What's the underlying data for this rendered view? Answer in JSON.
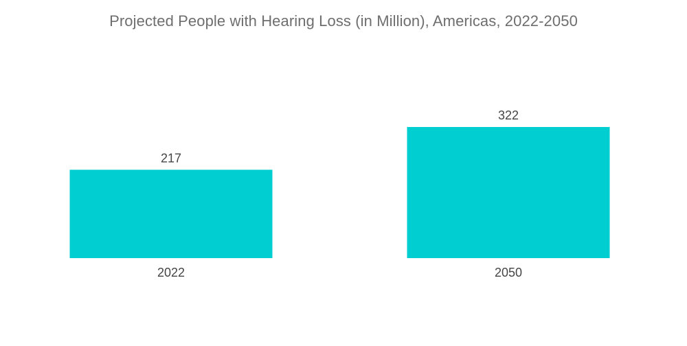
{
  "chart_data": {
    "type": "bar",
    "title": "Projected People with Hearing Loss (in Million), Americas, 2022-2050",
    "categories": [
      "2022",
      "2050"
    ],
    "values": [
      217,
      322
    ],
    "data_labels": [
      "217",
      "322"
    ],
    "xlabel": "",
    "ylabel": "",
    "ylim": [
      0,
      322
    ],
    "grid": false,
    "legend": "none",
    "bar_color": "#00ced1"
  }
}
